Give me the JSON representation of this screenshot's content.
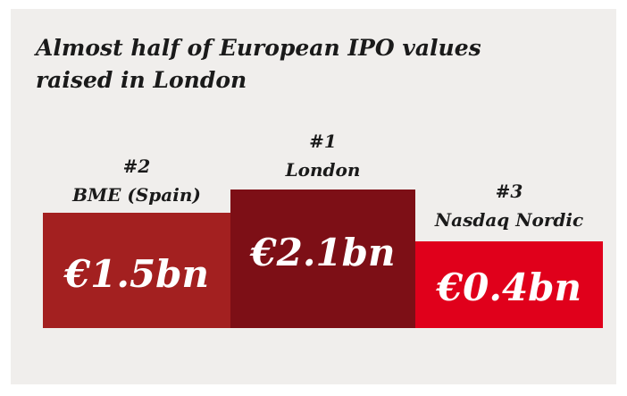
{
  "title": "Almost half of European IPO values raised in London",
  "podium": [
    {
      "rank": "#2",
      "name": "BME (Spain)",
      "value": "€1.5bn"
    },
    {
      "rank": "#1",
      "name": "London",
      "value": "€2.1bn"
    },
    {
      "rank": "#3",
      "name": "Nasdaq Nordic",
      "value": "€0.4bn"
    }
  ]
}
